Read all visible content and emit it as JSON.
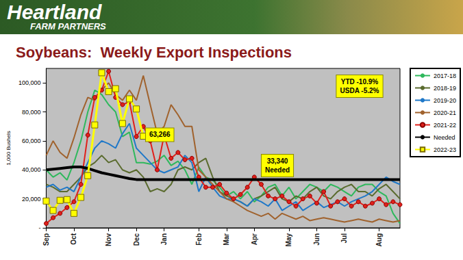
{
  "header": {
    "brand": "Heartland",
    "tagline": "FARM PARTNERS"
  },
  "chart_data": {
    "type": "line",
    "title": "Soybeans:  Weekly Export Inspections",
    "y_label": "1,000 Bushels",
    "categories": [
      "Sep",
      null,
      null,
      null,
      "Oct",
      null,
      null,
      null,
      null,
      "Nov",
      null,
      null,
      null,
      "Dec",
      null,
      null,
      null,
      "Jan",
      null,
      null,
      null,
      null,
      "Feb",
      null,
      null,
      null,
      "Mar",
      null,
      null,
      null,
      "Apr",
      null,
      null,
      null,
      null,
      "May",
      null,
      null,
      null,
      "Jun",
      null,
      null,
      null,
      "Jul",
      null,
      null,
      null,
      null,
      "Aug",
      null,
      null,
      null
    ],
    "ylim": [
      0,
      110000
    ],
    "yticks": [
      {
        "value": 0,
        "label": "-"
      },
      {
        "value": 20000,
        "label": "20,000"
      },
      {
        "value": 40000,
        "label": "40,000"
      },
      {
        "value": 60000,
        "label": "60,000"
      },
      {
        "value": 80000,
        "label": "80,000"
      },
      {
        "value": 100000,
        "label": "100,000"
      }
    ],
    "grid": false,
    "legend": "right",
    "annotations": [
      {
        "lines": [
          "YTD -10.9%",
          "USDA -5.2%"
        ]
      },
      {
        "lines": [
          "63,266"
        ]
      },
      {
        "lines": [
          "33,340",
          "Needed"
        ]
      }
    ],
    "series": [
      {
        "name": "2017-18",
        "color": "#2eb85c",
        "marker": "none",
        "line_style": "solid",
        "values": [
          40000,
          35000,
          38000,
          33000,
          45000,
          60000,
          80000,
          95000,
          92000,
          85000,
          80000,
          63000,
          66000,
          45000,
          45000,
          44000,
          46000,
          50000,
          43000,
          46000,
          40000,
          30000,
          42000,
          35000,
          33000,
          28000,
          22000,
          25000,
          20000,
          25000,
          18000,
          22000,
          28000,
          30000,
          22000,
          28000,
          20000,
          25000,
          30000,
          28000,
          25000,
          30000,
          28000,
          25000,
          22000,
          28000,
          30000,
          30000,
          25000,
          22000,
          10000,
          3000
        ]
      },
      {
        "name": "2018-19",
        "color": "#5a6b2e",
        "marker": "none",
        "line_style": "solid",
        "values": [
          30000,
          28000,
          25000,
          25000,
          30000,
          35000,
          42000,
          45000,
          50000,
          45000,
          47000,
          40000,
          38000,
          40000,
          35000,
          25000,
          27000,
          25000,
          30000,
          40000,
          42000,
          40000,
          45000,
          48000,
          35000,
          25000,
          22000,
          20000,
          18000,
          15000,
          20000,
          22000,
          25000,
          28000,
          20000,
          18000,
          22000,
          20000,
          25000,
          28000,
          22000,
          20000,
          25000,
          28000,
          30000,
          25000,
          25000,
          22000,
          27000,
          30000,
          25000,
          20000
        ]
      },
      {
        "name": "2019-20",
        "color": "#1f78c8",
        "marker": "none",
        "line_style": "solid",
        "values": [
          28000,
          30000,
          26000,
          28000,
          25000,
          35000,
          45000,
          55000,
          60000,
          58000,
          55000,
          65000,
          72000,
          55000,
          50000,
          45000,
          40000,
          38000,
          40000,
          42000,
          50000,
          45000,
          25000,
          35000,
          28000,
          22000,
          20000,
          20000,
          18000,
          15000,
          20000,
          18000,
          15000,
          20000,
          12000,
          15000,
          18000,
          12000,
          15000,
          18000,
          14000,
          16000,
          18000,
          15000,
          18000,
          20000,
          22000,
          25000,
          30000,
          35000,
          32000,
          30000
        ]
      },
      {
        "name": "2020-21",
        "color": "#a0622d",
        "marker": "none",
        "line_style": "solid",
        "values": [
          50000,
          60000,
          52000,
          48000,
          62000,
          78000,
          90000,
          88000,
          95000,
          100000,
          92000,
          88000,
          95000,
          88000,
          105000,
          85000,
          65000,
          70000,
          85000,
          78000,
          70000,
          70000,
          40000,
          35000,
          30000,
          25000,
          20000,
          18000,
          15000,
          12000,
          10000,
          8000,
          10000,
          6000,
          10000,
          8000,
          6000,
          8000,
          5000,
          6000,
          7000,
          6000,
          5000,
          4000,
          5000,
          6000,
          5000,
          4000,
          6000,
          5000,
          4000,
          5000
        ]
      },
      {
        "name": "2021-22",
        "color": "#e0201b",
        "marker": "circle",
        "line_style": "solid",
        "values": [
          3000,
          7000,
          10000,
          14000,
          18000,
          30000,
          64000,
          90000,
          95000,
          108000,
          90000,
          85000,
          87000,
          63000,
          70000,
          60000,
          40000,
          64000,
          48000,
          52000,
          47000,
          48000,
          35000,
          28000,
          28000,
          30000,
          24000,
          20000,
          23000,
          28000,
          35000,
          30000,
          22000,
          20000,
          22000,
          18000,
          15000,
          20000,
          22000,
          17000,
          25000,
          15000,
          18000,
          20000,
          15000,
          18000,
          15000,
          17000,
          20000,
          16000,
          18000,
          16000
        ]
      },
      {
        "name": "Needed",
        "color": "#000000",
        "marker": "none",
        "line_style": "solid",
        "values": [
          40000,
          40500,
          41000,
          41500,
          42000,
          42000,
          41000,
          39500,
          38000,
          37000,
          36000,
          35000,
          34000,
          33340,
          33340,
          33340,
          33340,
          33340,
          33340,
          33340,
          33340,
          33340,
          33340,
          33340,
          33340,
          33340,
          33340,
          33340,
          33340,
          33340,
          33340,
          33340,
          33340,
          33340,
          33340,
          33340,
          33340,
          33340,
          33340,
          33340,
          33340,
          33340,
          33340,
          33340,
          33340,
          33340,
          33340,
          33340,
          33340,
          33340,
          33340,
          33340
        ]
      },
      {
        "name": "2022-23",
        "color": "#ffff00",
        "marker": "square",
        "line_style": "solid",
        "values": [
          18500,
          12000,
          19000,
          19500,
          10000,
          21000,
          36000,
          71000,
          107000,
          94000,
          96000,
          72000,
          89000,
          82000,
          63266,
          null,
          null,
          null,
          null,
          null,
          null,
          null,
          null,
          null,
          null,
          null,
          null,
          null,
          null,
          null,
          null,
          null,
          null,
          null,
          null,
          null,
          null,
          null,
          null,
          null,
          null,
          null,
          null,
          null,
          null,
          null,
          null,
          null,
          null,
          null,
          null,
          null
        ]
      }
    ]
  }
}
